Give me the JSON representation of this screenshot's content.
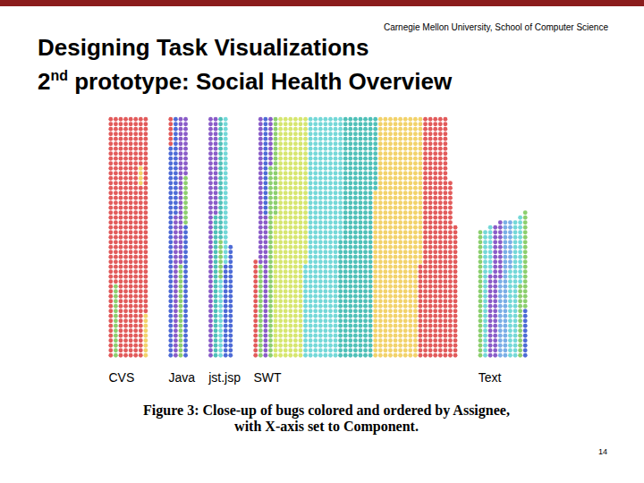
{
  "header": {
    "institution": "Carnegie Mellon University, School of Computer Science",
    "title": "Designing Task Visualizations",
    "subtitle_parts": [
      "2",
      "nd",
      " prototype: Social Health Overview"
    ]
  },
  "page_number": 14,
  "chart_data": {
    "type": "unit",
    "caption": [
      "Figure 3: Close-up of bugs colored and ordered by Assignee,",
      "with X-axis set to Component."
    ],
    "categories": [
      "CVS",
      "Java",
      "jst.jsp",
      "SWT",
      "Text"
    ],
    "columns": [
      [
        [
          {
            "color": "#e25b5b",
            "count": 49
          }
        ],
        [
          {
            "color": "#e25b5b",
            "count": 34
          },
          {
            "color": "#8ccf6e",
            "count": 15
          }
        ],
        [
          {
            "color": "#e25b5b",
            "count": 49
          }
        ],
        [
          {
            "color": "#e25b5b",
            "count": 49
          }
        ],
        [
          {
            "color": "#e25b5b",
            "count": 49
          }
        ],
        [
          {
            "color": "#e25b5b",
            "count": 49
          }
        ],
        [
          {
            "color": "#e25b5b",
            "count": 10
          },
          {
            "color": "#f2d26a",
            "count": 4
          },
          {
            "color": "#e25b5b",
            "count": 35
          }
        ],
        [
          {
            "color": "#e25b5b",
            "count": 40
          },
          {
            "color": "#f2d26a",
            "count": 9
          }
        ]
      ],
      [
        [
          {
            "color": "#e25b5b",
            "count": 6
          },
          {
            "color": "#4d6bd6",
            "count": 43
          }
        ],
        [
          {
            "color": "#4d6bd6",
            "count": 20
          },
          {
            "color": "#8a5cc8",
            "count": 29
          }
        ],
        [
          {
            "color": "#8a5cc8",
            "count": 30
          },
          {
            "color": "#8ccf6e",
            "count": 19
          }
        ],
        [
          {
            "color": "#8a5cc8",
            "count": 12
          },
          {
            "color": "#8ccf6e",
            "count": 10
          },
          {
            "color": "#4d6bd6",
            "count": 27
          }
        ]
      ],
      [
        [
          {
            "color": "#8a5cc8",
            "count": 49
          }
        ],
        [
          {
            "color": "#8a5cc8",
            "count": 20
          },
          {
            "color": "#4fc0b8",
            "count": 29
          }
        ],
        [
          {
            "color": "#4fc0b8",
            "count": 25
          },
          {
            "color": "#8ccf6e",
            "count": 8
          },
          {
            "color": "#74d8d8",
            "count": 16
          }
        ],
        [
          {
            "color": "#74d8d8",
            "count": 30
          },
          {
            "color": "#4d6bd6",
            "count": 19
          }
        ],
        [
          {
            "color": "#4d6bd6",
            "count": 23
          }
        ]
      ],
      [
        [
          {
            "color": "#e25b5b",
            "count": 20
          }
        ],
        [
          {
            "color": "#8a5cc8",
            "count": 30
          },
          {
            "color": "#8ccf6e",
            "count": 19
          }
        ],
        [
          {
            "color": "#4d6bd6",
            "count": 20
          },
          {
            "color": "#8a5cc8",
            "count": 29
          }
        ],
        [
          {
            "color": "#8a5cc8",
            "count": 10
          },
          {
            "color": "#8ccf6e",
            "count": 39
          }
        ],
        [
          {
            "color": "#8ccf6e",
            "count": 20
          },
          {
            "color": "#d6e66f",
            "count": 29
          }
        ],
        [
          {
            "color": "#d6e66f",
            "count": 49
          }
        ],
        [
          {
            "color": "#d6e66f",
            "count": 49
          }
        ],
        [
          {
            "color": "#d6e66f",
            "count": 49
          }
        ],
        [
          {
            "color": "#d6e66f",
            "count": 49
          }
        ],
        [
          {
            "color": "#d6e66f",
            "count": 49
          }
        ],
        [
          {
            "color": "#d6e66f",
            "count": 30
          },
          {
            "color": "#74d8d8",
            "count": 19
          }
        ],
        [
          {
            "color": "#74d8d8",
            "count": 49
          }
        ],
        [
          {
            "color": "#74d8d8",
            "count": 49
          }
        ],
        [
          {
            "color": "#74d8d8",
            "count": 49
          }
        ],
        [
          {
            "color": "#74d8d8",
            "count": 49
          }
        ],
        [
          {
            "color": "#74d8d8",
            "count": 49
          }
        ],
        [
          {
            "color": "#74d8d8",
            "count": 49
          }
        ],
        [
          {
            "color": "#74d8d8",
            "count": 25
          },
          {
            "color": "#4fc0b8",
            "count": 24
          }
        ],
        [
          {
            "color": "#4fc0b8",
            "count": 49
          }
        ],
        [
          {
            "color": "#4fc0b8",
            "count": 49
          }
        ],
        [
          {
            "color": "#4fc0b8",
            "count": 49
          }
        ],
        [
          {
            "color": "#4fc0b8",
            "count": 49
          }
        ],
        [
          {
            "color": "#4fc0b8",
            "count": 49
          }
        ],
        [
          {
            "color": "#4fc0b8",
            "count": 49
          }
        ],
        [
          {
            "color": "#4fc0b8",
            "count": 15
          },
          {
            "color": "#f2d26a",
            "count": 34
          }
        ],
        [
          {
            "color": "#f2d26a",
            "count": 49
          }
        ],
        [
          {
            "color": "#f2d26a",
            "count": 49
          }
        ],
        [
          {
            "color": "#f2d26a",
            "count": 49
          }
        ],
        [
          {
            "color": "#f2d26a",
            "count": 49
          }
        ],
        [
          {
            "color": "#f2d26a",
            "count": 49
          }
        ],
        [
          {
            "color": "#f2d26a",
            "count": 49
          }
        ],
        [
          {
            "color": "#f2d26a",
            "count": 49
          }
        ],
        [
          {
            "color": "#f2d26a",
            "count": 49
          }
        ],
        [
          {
            "color": "#f2d26a",
            "count": 30
          },
          {
            "color": "#e25b5b",
            "count": 19
          }
        ],
        [
          {
            "color": "#e25b5b",
            "count": 49
          }
        ],
        [
          {
            "color": "#e25b5b",
            "count": 49
          }
        ],
        [
          {
            "color": "#e25b5b",
            "count": 49
          }
        ],
        [
          {
            "color": "#e25b5b",
            "count": 49
          }
        ],
        [
          {
            "color": "#e25b5b",
            "count": 49
          }
        ],
        [
          {
            "color": "#e25b5b",
            "count": 36
          }
        ],
        [
          {
            "color": "#e25b5b",
            "count": 27
          }
        ]
      ],
      [
        [
          {
            "color": "#8ccf6e",
            "count": 26
          }
        ],
        [
          {
            "color": "#74d8d8",
            "count": 26
          }
        ],
        [
          {
            "color": "#74d8d8",
            "count": 10
          },
          {
            "color": "#8a5cc8",
            "count": 17
          }
        ],
        [
          {
            "color": "#8a5cc8",
            "count": 27
          }
        ],
        [
          {
            "color": "#8a5cc8",
            "count": 12
          },
          {
            "color": "#7aaee6",
            "count": 16
          }
        ],
        [
          {
            "color": "#7aaee6",
            "count": 28
          }
        ],
        [
          {
            "color": "#7aaee6",
            "count": 10
          },
          {
            "color": "#74d8d8",
            "count": 18
          }
        ],
        [
          {
            "color": "#74d8d8",
            "count": 28
          }
        ],
        [
          {
            "color": "#74d8d8",
            "count": 14
          },
          {
            "color": "#8ccf6e",
            "count": 15
          }
        ],
        [
          {
            "color": "#8ccf6e",
            "count": 20
          },
          {
            "color": "#4d6bd6",
            "count": 10
          }
        ]
      ]
    ]
  }
}
